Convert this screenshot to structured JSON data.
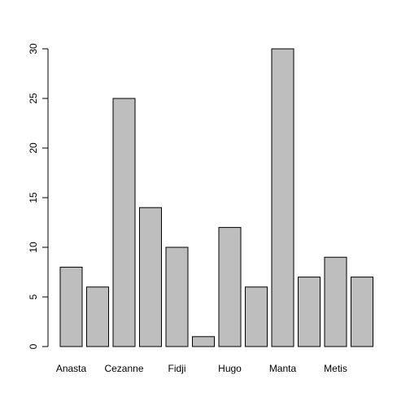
{
  "chart_data": {
    "type": "bar",
    "categories": [
      "Anasta",
      "",
      "Cezanne",
      "",
      "Fidji",
      "",
      "Hugo",
      "",
      "Manta",
      "",
      "Metis",
      ""
    ],
    "values": [
      8,
      6,
      25,
      14,
      10,
      1,
      12,
      6,
      30,
      7,
      9,
      7
    ],
    "title": "",
    "xlabel": "",
    "ylabel": "",
    "ylim": [
      0,
      30
    ],
    "yticks": [
      0,
      5,
      10,
      15,
      20,
      25,
      30
    ],
    "grid": false,
    "bar_color": "#bebebe",
    "edge_color": "#000000"
  }
}
